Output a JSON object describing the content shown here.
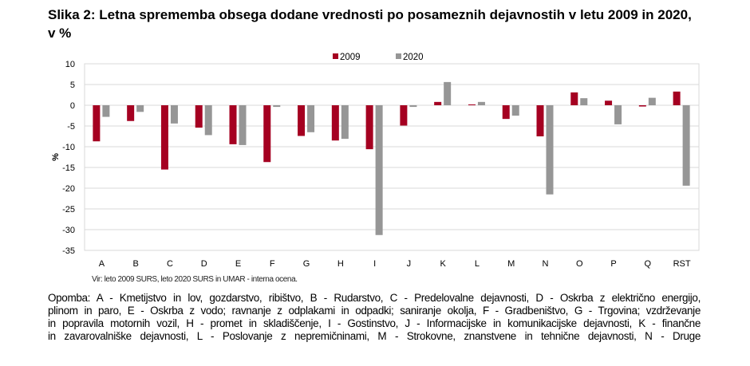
{
  "title": "Slika 2: Letna sprememba obsega dodane vrednosti po posameznih dejavnostih v letu 2009 in 2020, v %",
  "chart_data": {
    "type": "bar",
    "title": "",
    "xlabel": "",
    "ylabel": "%",
    "ylim": [
      -35,
      10
    ],
    "yticks": [
      10,
      5,
      0,
      -5,
      -10,
      -15,
      -20,
      -25,
      -30,
      -35
    ],
    "grid": true,
    "legend": "top-center",
    "categories": [
      "A",
      "B",
      "C",
      "D",
      "E",
      "F",
      "G",
      "H",
      "I",
      "J",
      "K",
      "L",
      "M",
      "N",
      "O",
      "P",
      "Q",
      "RST"
    ],
    "series": [
      {
        "name": "2009",
        "color": "#a50021",
        "values": [
          -8.7,
          -3.8,
          -15.5,
          -5.4,
          -9.4,
          -13.7,
          -7.4,
          -8.5,
          -10.6,
          -4.9,
          0.8,
          0.2,
          -3.3,
          -7.5,
          3.1,
          1.1,
          -0.3,
          3.3
        ]
      },
      {
        "name": "2020",
        "color": "#969696",
        "values": [
          -2.8,
          -1.6,
          -4.4,
          -7.2,
          -9.6,
          -0.4,
          -6.5,
          -8.1,
          -31.3,
          -0.4,
          5.6,
          0.8,
          -2.5,
          -21.5,
          1.7,
          -4.6,
          1.8,
          -19.4
        ]
      }
    ]
  },
  "source": "Vir: leto 2009 SURS, leto 2020 SURS in UMAR - interna ocena.",
  "note_lines": [
    "Opomba: A - Kmetijstvo in lov, gozdarstvo, ribištvo, B - Rudarstvo, C - Predelovalne dejavnosti, D - Oskrba z električno energijo,",
    "plinom in paro, E - Oskrba z vodo; ravnanje z odplakami in odpadki; saniranje okolja, F - Gradbeništvo, G - Trgovina; vzdrževanje",
    "in popravila motornih vozil, H - promet in skladiščenje, I - Gostinstvo, J - Informacijske in komunikacijske dejavnosti, K - finančne",
    "in zavarovalniške dejavnosti, L - Poslovanje z nepremičninami, M - Strokovne, znanstvene in tehnične dejavnosti, N - Druge"
  ]
}
